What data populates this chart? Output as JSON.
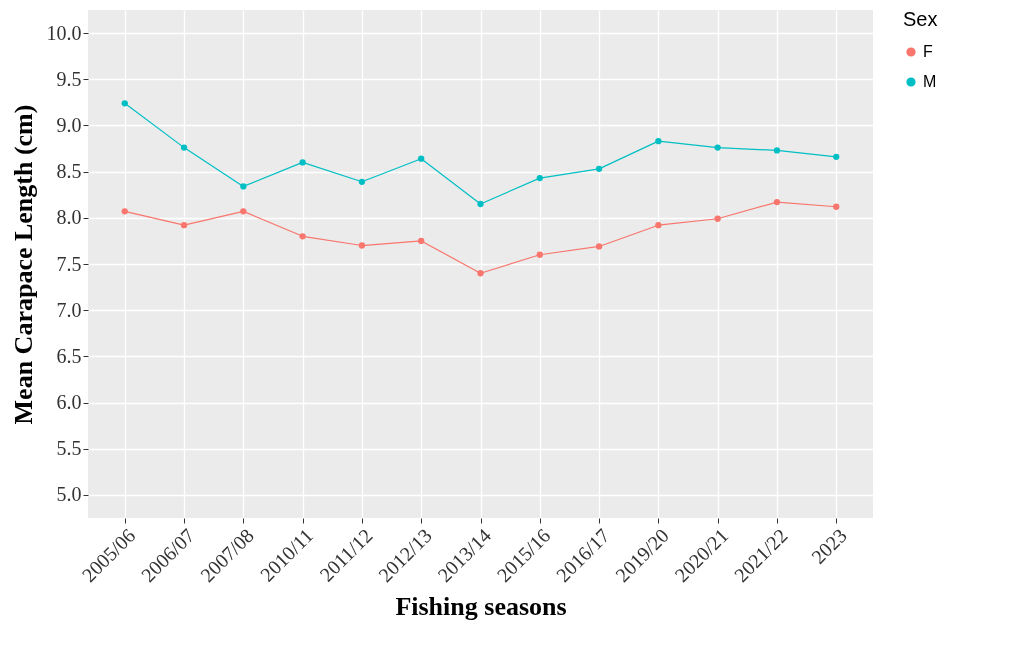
{
  "chart_data": {
    "type": "line",
    "xlabel": "Fishing seasons",
    "ylabel": "Mean Carapace Length (cm)",
    "legend_title": "Sex",
    "categories": [
      "2005/06",
      "2006/07",
      "2007/08",
      "2010/11",
      "2011/12",
      "2012/13",
      "2013/14",
      "2015/16",
      "2016/17",
      "2019/20",
      "2020/21",
      "2021/22",
      "2023"
    ],
    "series": [
      {
        "name": "F",
        "color": "#f8766d",
        "values": [
          8.07,
          7.92,
          8.07,
          7.8,
          7.7,
          7.75,
          7.4,
          7.6,
          7.69,
          7.92,
          7.99,
          8.17,
          8.12
        ]
      },
      {
        "name": "M",
        "color": "#00bfc4",
        "values": [
          9.24,
          8.76,
          8.34,
          8.6,
          8.39,
          8.64,
          8.15,
          8.43,
          8.53,
          8.83,
          8.76,
          8.73,
          8.66
        ]
      }
    ],
    "ylim": [
      4.75,
      10.25
    ],
    "yticks": [
      {
        "value": 5,
        "label": "5.0"
      },
      {
        "value": 5.5,
        "label": "5.5"
      },
      {
        "value": 6,
        "label": "6.0"
      },
      {
        "value": 6.5,
        "label": "6.5"
      },
      {
        "value": 7,
        "label": "7.0"
      },
      {
        "value": 7.5,
        "label": "7.5"
      },
      {
        "value": 8,
        "label": "8.0"
      },
      {
        "value": 8.5,
        "label": "8.5"
      },
      {
        "value": 9,
        "label": "9.0"
      },
      {
        "value": 9.5,
        "label": "9.5"
      },
      {
        "value": 10,
        "label": "10.0"
      }
    ],
    "grid": true,
    "legend": "right",
    "marker": "circle",
    "line_style": "solid"
  }
}
